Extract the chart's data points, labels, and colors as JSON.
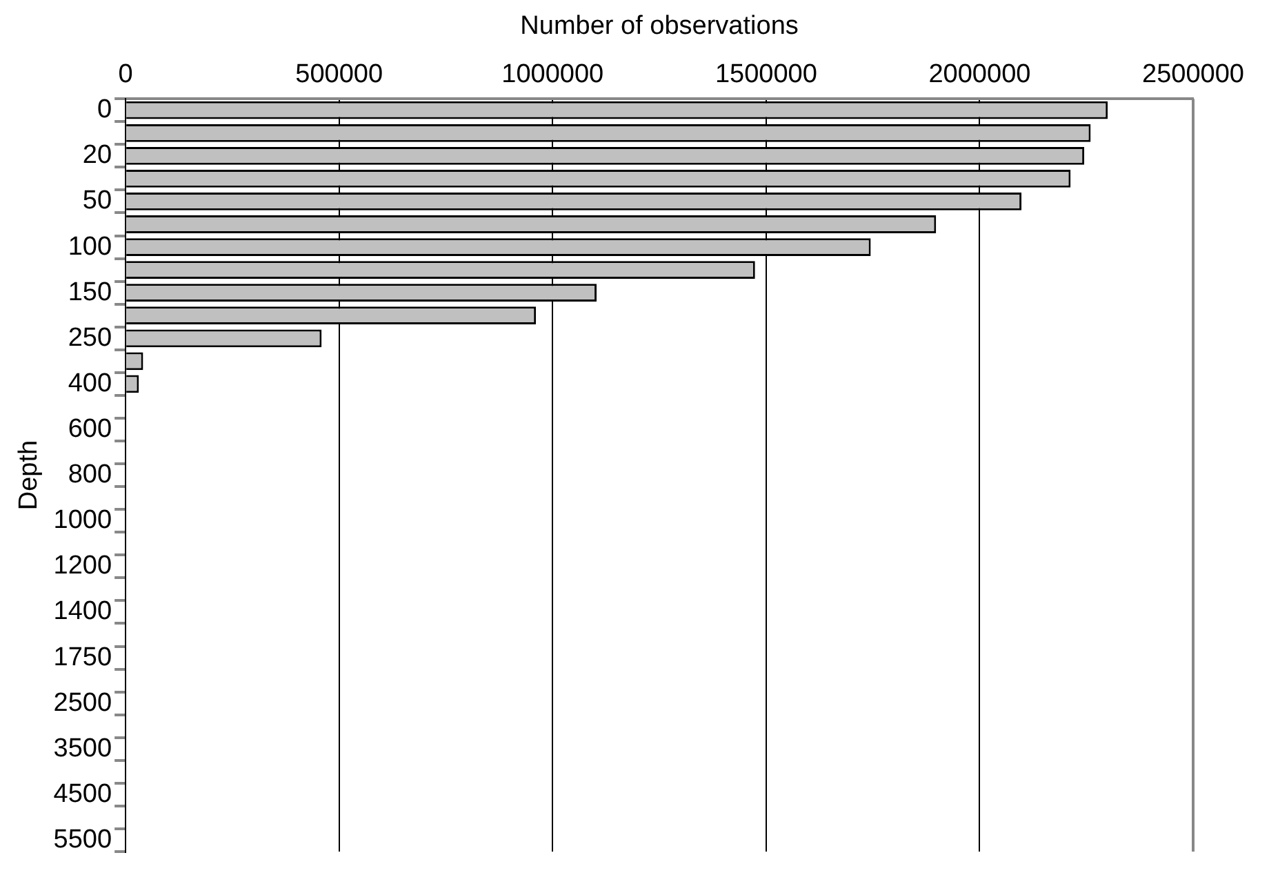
{
  "chart_data": {
    "type": "bar",
    "orientation": "horizontal",
    "xlabel": "Number of observations",
    "ylabel": "Depth",
    "categories": [
      "0",
      null,
      "20",
      null,
      "50",
      null,
      "100",
      null,
      "150",
      null,
      "250",
      null,
      "400",
      null,
      "600",
      null,
      "800",
      null,
      "1000",
      null,
      "1200",
      null,
      "1400",
      null,
      "1750",
      null,
      "2500",
      null,
      "3500",
      null,
      "4500",
      null,
      "5500"
    ],
    "values": [
      2300000,
      2260000,
      2245000,
      2213000,
      2098000,
      1898000,
      1745000,
      1474000,
      1103000,
      961000,
      459000,
      41000,
      31000,
      0,
      0,
      0,
      0,
      0,
      0,
      0,
      0,
      0,
      0,
      0,
      0,
      0,
      0,
      0,
      0,
      0,
      0,
      0,
      0
    ],
    "color": "#c0c0c0",
    "xlim": [
      0,
      2500000
    ],
    "xticks": [
      0,
      500000,
      1000000,
      1500000,
      2000000,
      2500000
    ],
    "grid": "x",
    "legend": false
  }
}
